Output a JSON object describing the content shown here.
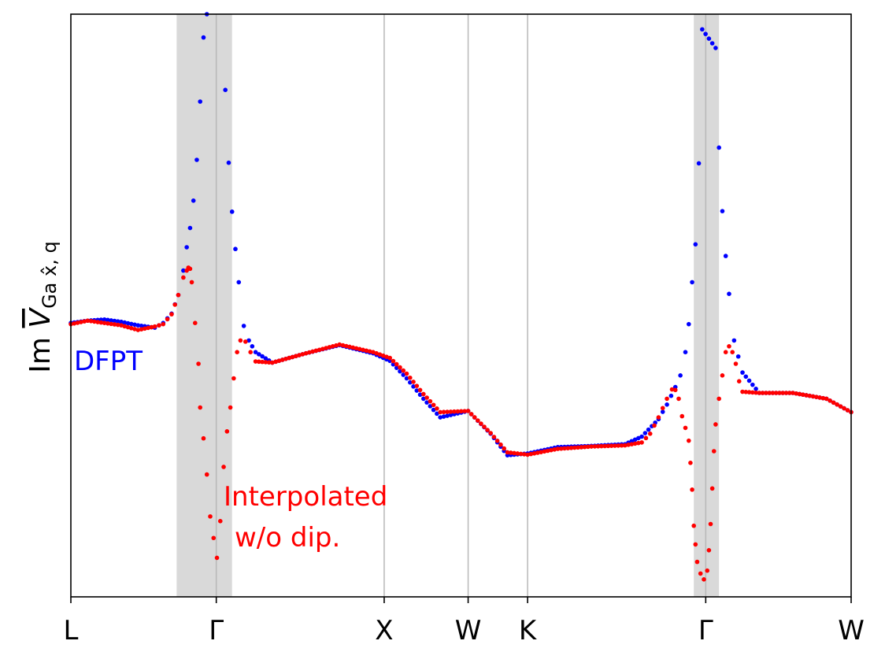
{
  "chart_data": {
    "type": "scatter",
    "xlabel": "",
    "ylabel": {
      "prefix": "Im ",
      "symbol": "V",
      "subscript": "Ga x̂, q"
    },
    "x_ticks": [
      "L",
      "Γ",
      "X",
      "W",
      "K",
      "Γ",
      "W"
    ],
    "x_tick_positions": [
      0,
      0.866,
      1.866,
      2.366,
      2.72,
      3.781,
      4.647
    ],
    "xlim": [
      0,
      4.647
    ],
    "ylim": [
      0,
      1
    ],
    "y_ticks_shown": false,
    "vertical_lines_at": [
      0.866,
      1.866,
      2.366,
      2.72,
      3.781
    ],
    "shaded_regions": [
      [
        0.63,
        0.96
      ],
      [
        3.71,
        3.86
      ]
    ],
    "annotations": [
      {
        "text": "DFPT",
        "color": "#0000ff"
      },
      {
        "text": "Interpolated",
        "color": "#ff0000"
      },
      {
        "text": "w/o dip.",
        "color": "#ff0000"
      }
    ],
    "series": [
      {
        "color": "#0000ff",
        "points": [
          [
            0.0,
            0.47
          ],
          [
            0.1,
            0.474
          ],
          [
            0.2,
            0.476
          ],
          [
            0.3,
            0.472
          ],
          [
            0.4,
            0.466
          ],
          [
            0.5,
            0.462
          ],
          [
            0.55,
            0.47
          ],
          [
            0.6,
            0.486
          ],
          [
            0.64,
            0.518
          ],
          [
            0.67,
            0.56
          ],
          [
            0.69,
            0.6
          ],
          [
            0.71,
            0.633
          ],
          [
            0.73,
            0.68
          ],
          [
            0.75,
            0.75
          ],
          [
            0.77,
            0.85
          ],
          [
            0.79,
            0.96
          ],
          [
            0.81,
            1.0
          ],
          [
            0.92,
            0.87
          ],
          [
            0.94,
            0.745
          ],
          [
            0.96,
            0.661
          ],
          [
            0.98,
            0.597
          ],
          [
            1.0,
            0.54
          ],
          [
            1.03,
            0.465
          ],
          [
            1.06,
            0.44
          ],
          [
            1.1,
            0.42
          ],
          [
            1.2,
            0.402
          ],
          [
            1.4,
            0.418
          ],
          [
            1.6,
            0.432
          ],
          [
            1.8,
            0.418
          ],
          [
            1.9,
            0.405
          ],
          [
            2.0,
            0.375
          ],
          [
            2.1,
            0.34
          ],
          [
            2.2,
            0.308
          ],
          [
            2.366,
            0.319
          ],
          [
            2.5,
            0.28
          ],
          [
            2.6,
            0.243
          ],
          [
            2.72,
            0.246
          ],
          [
            2.9,
            0.257
          ],
          [
            3.1,
            0.259
          ],
          [
            3.3,
            0.262
          ],
          [
            3.4,
            0.275
          ],
          [
            3.5,
            0.305
          ],
          [
            3.55,
            0.33
          ],
          [
            3.6,
            0.36
          ],
          [
            3.63,
            0.38
          ],
          [
            3.66,
            0.42
          ],
          [
            3.68,
            0.468
          ],
          [
            3.7,
            0.54
          ],
          [
            3.72,
            0.605
          ],
          [
            3.74,
            0.744
          ],
          [
            3.76,
            0.974
          ],
          [
            3.84,
            0.942
          ],
          [
            3.86,
            0.771
          ],
          [
            3.88,
            0.662
          ],
          [
            3.9,
            0.585
          ],
          [
            3.92,
            0.52
          ],
          [
            3.95,
            0.44
          ],
          [
            4.0,
            0.385
          ],
          [
            4.1,
            0.35
          ],
          [
            4.3,
            0.35
          ],
          [
            4.5,
            0.34
          ],
          [
            4.647,
            0.317
          ]
        ]
      },
      {
        "color": "#ff0000",
        "points": [
          [
            0.0,
            0.468
          ],
          [
            0.1,
            0.474
          ],
          [
            0.2,
            0.47
          ],
          [
            0.3,
            0.466
          ],
          [
            0.4,
            0.458
          ],
          [
            0.5,
            0.464
          ],
          [
            0.55,
            0.468
          ],
          [
            0.6,
            0.485
          ],
          [
            0.64,
            0.518
          ],
          [
            0.67,
            0.548
          ],
          [
            0.69,
            0.56
          ],
          [
            0.7,
            0.565
          ],
          [
            0.71,
            0.563
          ],
          [
            0.72,
            0.54
          ],
          [
            0.74,
            0.47
          ],
          [
            0.76,
            0.4
          ],
          [
            0.77,
            0.325
          ],
          [
            0.79,
            0.272
          ],
          [
            0.81,
            0.21
          ],
          [
            0.83,
            0.138
          ],
          [
            0.85,
            0.101
          ],
          [
            0.87,
            0.067
          ],
          [
            0.89,
            0.13
          ],
          [
            0.91,
            0.223
          ],
          [
            0.93,
            0.284
          ],
          [
            0.95,
            0.325
          ],
          [
            0.97,
            0.375
          ],
          [
            0.99,
            0.42
          ],
          [
            1.01,
            0.44
          ],
          [
            1.04,
            0.438
          ],
          [
            1.07,
            0.42
          ],
          [
            1.1,
            0.404
          ],
          [
            1.2,
            0.402
          ],
          [
            1.4,
            0.418
          ],
          [
            1.6,
            0.433
          ],
          [
            1.8,
            0.42
          ],
          [
            1.9,
            0.41
          ],
          [
            2.0,
            0.383
          ],
          [
            2.1,
            0.348
          ],
          [
            2.2,
            0.317
          ],
          [
            2.366,
            0.319
          ],
          [
            2.5,
            0.281
          ],
          [
            2.6,
            0.248
          ],
          [
            2.72,
            0.244
          ],
          [
            2.9,
            0.254
          ],
          [
            3.1,
            0.258
          ],
          [
            3.3,
            0.26
          ],
          [
            3.4,
            0.265
          ],
          [
            3.45,
            0.28
          ],
          [
            3.5,
            0.308
          ],
          [
            3.55,
            0.34
          ],
          [
            3.58,
            0.356
          ],
          [
            3.6,
            0.355
          ],
          [
            3.62,
            0.34
          ],
          [
            3.64,
            0.31
          ],
          [
            3.66,
            0.29
          ],
          [
            3.68,
            0.268
          ],
          [
            3.69,
            0.23
          ],
          [
            3.7,
            0.184
          ],
          [
            3.71,
            0.122
          ],
          [
            3.72,
            0.09
          ],
          [
            3.73,
            0.06
          ],
          [
            3.75,
            0.04
          ],
          [
            3.77,
            0.03
          ],
          [
            3.79,
            0.045
          ],
          [
            3.8,
            0.08
          ],
          [
            3.81,
            0.125
          ],
          [
            3.82,
            0.186
          ],
          [
            3.83,
            0.25
          ],
          [
            3.84,
            0.296
          ],
          [
            3.86,
            0.34
          ],
          [
            3.88,
            0.38
          ],
          [
            3.9,
            0.42
          ],
          [
            3.92,
            0.43
          ],
          [
            3.94,
            0.42
          ],
          [
            3.96,
            0.4
          ],
          [
            3.98,
            0.37
          ],
          [
            4.0,
            0.352
          ],
          [
            4.1,
            0.35
          ],
          [
            4.3,
            0.35
          ],
          [
            4.5,
            0.34
          ],
          [
            4.647,
            0.317
          ]
        ]
      }
    ]
  }
}
